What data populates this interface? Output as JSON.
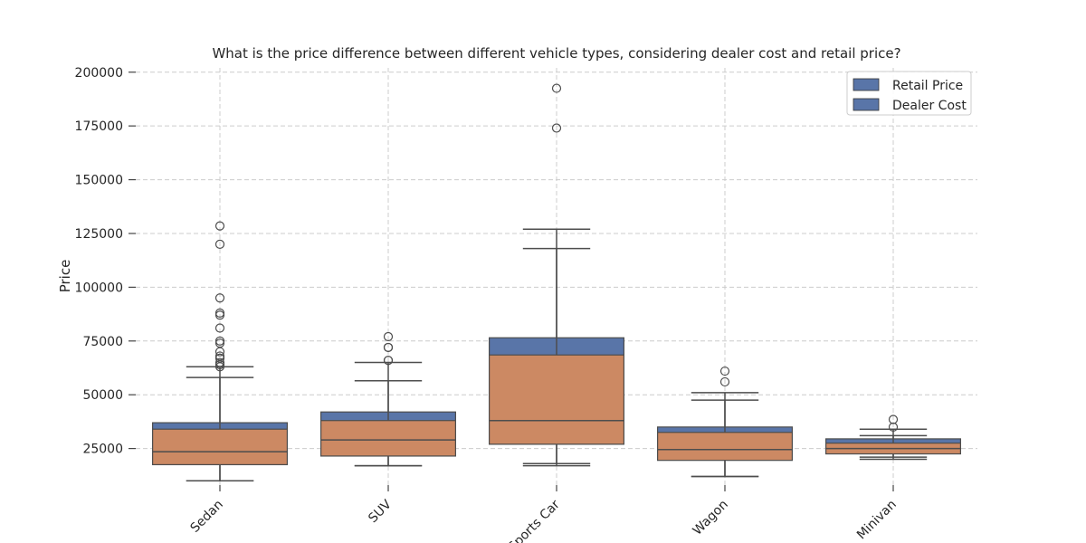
{
  "chart_data": {
    "type": "boxplot",
    "title": "What is the price difference between different vehicle types, considering dealer cost and retail price?",
    "xlabel": "",
    "ylabel": "Price",
    "categories": [
      "Sedan",
      "SUV",
      "Sports Car",
      "Wagon",
      "Minivan"
    ],
    "y_ticks": [
      25000,
      50000,
      75000,
      100000,
      125000,
      150000,
      175000,
      200000
    ],
    "ylim": [
      8000,
      202000
    ],
    "grid": true,
    "legend_position": "top-right",
    "series": [
      {
        "name": "Retail Price",
        "color": "#5975a8",
        "boxes": [
          {
            "whislo": 10000,
            "q1": 17500,
            "med": 25500,
            "q3": 37000,
            "whishi": 63000,
            "fliers": [
              64000,
              65000,
              67000,
              68000,
              70000,
              74000,
              75000,
              81000,
              87000,
              88000,
              95000,
              120000,
              128500
            ]
          },
          {
            "whislo": 17000,
            "q1": 21500,
            "med": 31000,
            "q3": 42000,
            "whishi": 65000,
            "fliers": [
              66000,
              72000,
              77000
            ]
          },
          {
            "whislo": 18000,
            "q1": 27000,
            "med": 41000,
            "q3": 76500,
            "whishi": 127000,
            "fliers": [
              174000,
              192500
            ]
          },
          {
            "whislo": 12000,
            "q1": 20000,
            "med": 26500,
            "q3": 35000,
            "whishi": 51000,
            "fliers": [
              56000,
              61000
            ]
          },
          {
            "whislo": 21000,
            "q1": 23500,
            "med": 26500,
            "q3": 29500,
            "whishi": 34000,
            "fliers": [
              35000,
              38500
            ]
          }
        ]
      },
      {
        "name": "Dealer Cost",
        "color": "#cc8963",
        "boxes": [
          {
            "whislo": 10000,
            "q1": 17500,
            "med": 23500,
            "q3": 34000,
            "whishi": 58000,
            "fliers": [
              63000,
              64000,
              67000
            ]
          },
          {
            "whislo": 17000,
            "q1": 21500,
            "med": 29000,
            "q3": 38000,
            "whishi": 56500,
            "fliers": [
              66000,
              72000
            ]
          },
          {
            "whislo": 17000,
            "q1": 27000,
            "med": 38000,
            "q3": 68500,
            "whishi": 118000,
            "fliers": []
          },
          {
            "whislo": 12000,
            "q1": 19500,
            "med": 24500,
            "q3": 32500,
            "whishi": 47500,
            "fliers": []
          },
          {
            "whislo": 20000,
            "q1": 22500,
            "med": 25000,
            "q3": 27500,
            "whishi": 31000,
            "fliers": []
          }
        ]
      }
    ]
  }
}
